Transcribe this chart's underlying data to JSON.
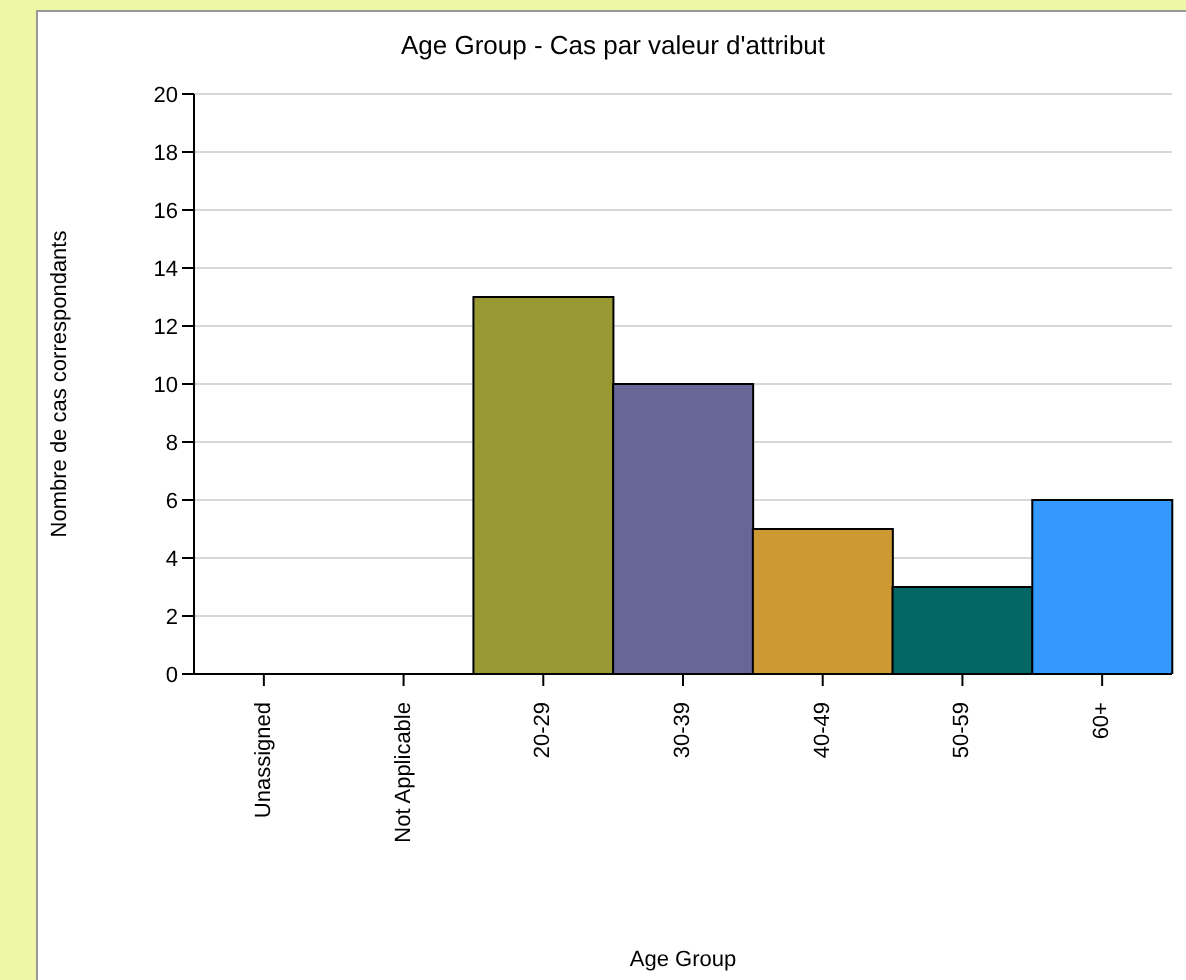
{
  "chart_data": {
    "type": "bar",
    "title": "Age Group - Cas par valeur d'attribut",
    "xlabel": "Age Group",
    "ylabel": "Nombre de cas correspondants",
    "categories": [
      "Unassigned",
      "Not Applicable",
      "20-29",
      "30-39",
      "40-49",
      "50-59",
      "60+"
    ],
    "values": [
      0,
      0,
      13,
      10,
      5,
      3,
      6
    ],
    "colors": [
      "#999933",
      "#999933",
      "#999933",
      "#666699",
      "#cc9933",
      "#006666",
      "#3399ff"
    ],
    "ylim": [
      0,
      20
    ],
    "yticks": [
      0,
      2,
      4,
      6,
      8,
      10,
      12,
      14,
      16,
      18,
      20
    ],
    "grid": "y"
  }
}
